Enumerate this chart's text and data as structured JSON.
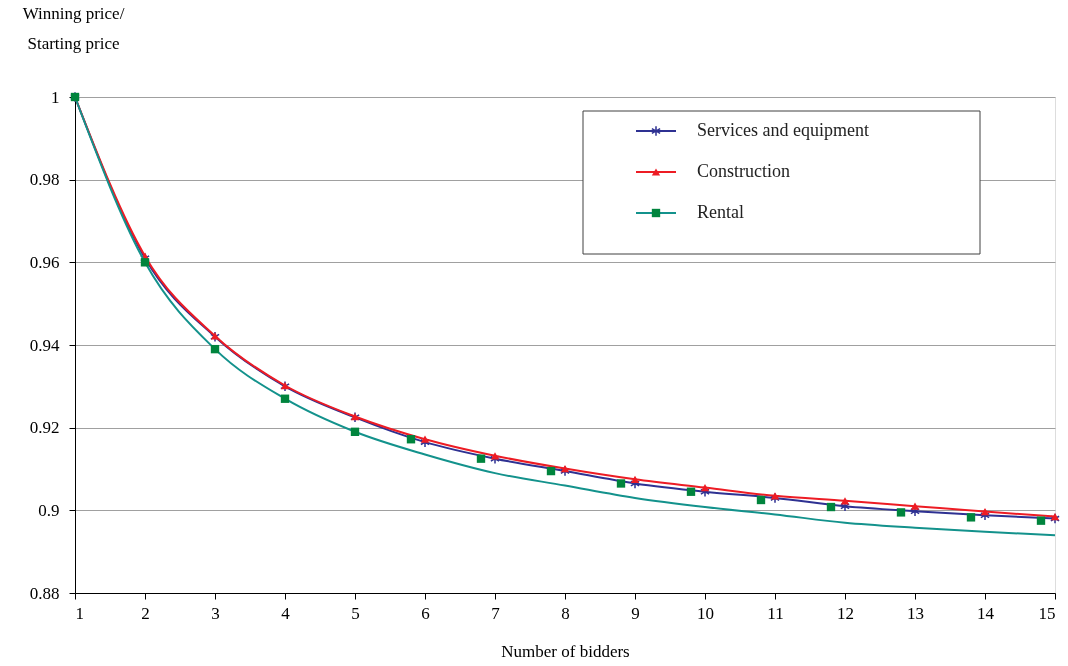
{
  "chart_data": {
    "type": "line",
    "xlabel": "Number of bidders",
    "ylabel": "Winning price/\nStarting price",
    "x": [
      1,
      2,
      3,
      4,
      5,
      6,
      7,
      8,
      9,
      10,
      11,
      12,
      13,
      14,
      15
    ],
    "xlim": [
      1,
      15
    ],
    "xticks": [
      1,
      2,
      3,
      4,
      5,
      6,
      7,
      8,
      9,
      10,
      11,
      12,
      13,
      14,
      15
    ],
    "ylim": [
      0.88,
      1
    ],
    "yticks": [
      0.88,
      0.9,
      0.92,
      0.94,
      0.96,
      0.98,
      1
    ],
    "grid": "y",
    "legend": "top right",
    "line_style": "solid",
    "series": [
      {
        "name": "Services and equipment",
        "color": "#2e3192",
        "marker": "cross",
        "values": [
          1,
          0.961,
          0.942,
          0.93,
          0.9225,
          0.9165,
          0.9125,
          0.9095,
          0.9065,
          0.9045,
          0.903,
          0.901,
          0.8998,
          0.8988,
          0.898
        ]
      },
      {
        "name": "Construction",
        "color": "#ed1c24",
        "marker": "triangle",
        "values": [
          1,
          0.9615,
          0.9422,
          0.9302,
          0.9227,
          0.9172,
          0.9132,
          0.9101,
          0.9075,
          0.9055,
          0.9035,
          0.9023,
          0.901,
          0.8997,
          0.8985
        ]
      },
      {
        "name": "Rental",
        "color": "#13928c",
        "marker": "none",
        "values": [
          1,
          0.96,
          0.939,
          0.927,
          0.919,
          0.9135,
          0.909,
          0.906,
          0.903,
          0.9008,
          0.899,
          0.897,
          0.8958,
          0.8948,
          0.894
        ]
      },
      {
        "type": "scatter",
        "color": "#00843d",
        "marker": "square",
        "x": [
          1,
          2,
          3,
          4,
          5,
          5.8,
          6.8,
          7.8,
          8.8,
          9.8,
          10.8,
          11.8,
          12.8,
          13.8,
          14.8
        ],
        "values": [
          1,
          0.96,
          0.939,
          0.927,
          0.919,
          0.9172,
          0.9125,
          0.9095,
          0.9065,
          0.9045,
          0.9025,
          0.9008,
          0.8995,
          0.8983,
          0.8975
        ]
      }
    ]
  }
}
